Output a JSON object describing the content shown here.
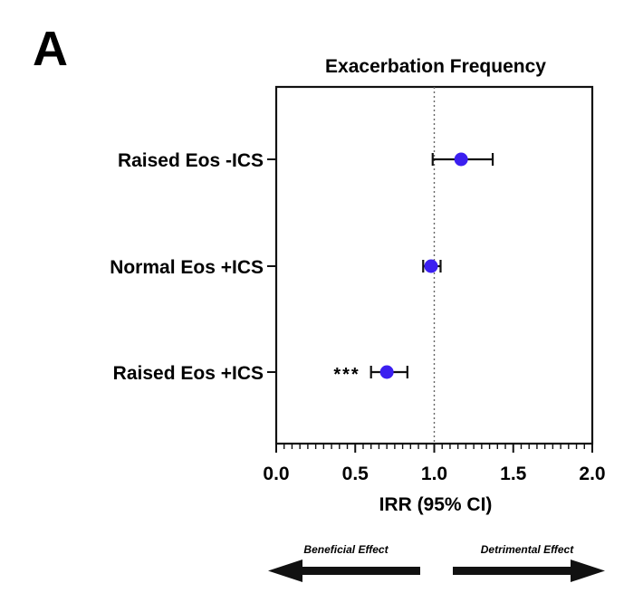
{
  "panel_letter": "A",
  "chart_data": {
    "type": "forest",
    "title": "Exacerbation Frequency",
    "xlabel": "IRR (95% CI)",
    "xlim": [
      0.0,
      2.0
    ],
    "xticks": [
      "0.0",
      "0.5",
      "1.0",
      "1.5",
      "2.0"
    ],
    "reference_line_x": 1.0,
    "categories": [
      "Raised Eos -ICS",
      "Normal Eos +ICS",
      "Raised Eos +ICS"
    ],
    "estimates": [
      1.17,
      0.98,
      0.7
    ],
    "ci_lower": [
      0.99,
      0.93,
      0.6
    ],
    "ci_upper": [
      1.37,
      1.04,
      0.83
    ],
    "significance": [
      "",
      "",
      "***"
    ],
    "point_color": "#3b1ff0",
    "grid": false
  },
  "effect_labels": {
    "left": "Beneficial Effect",
    "right": "Detrimental Effect"
  }
}
